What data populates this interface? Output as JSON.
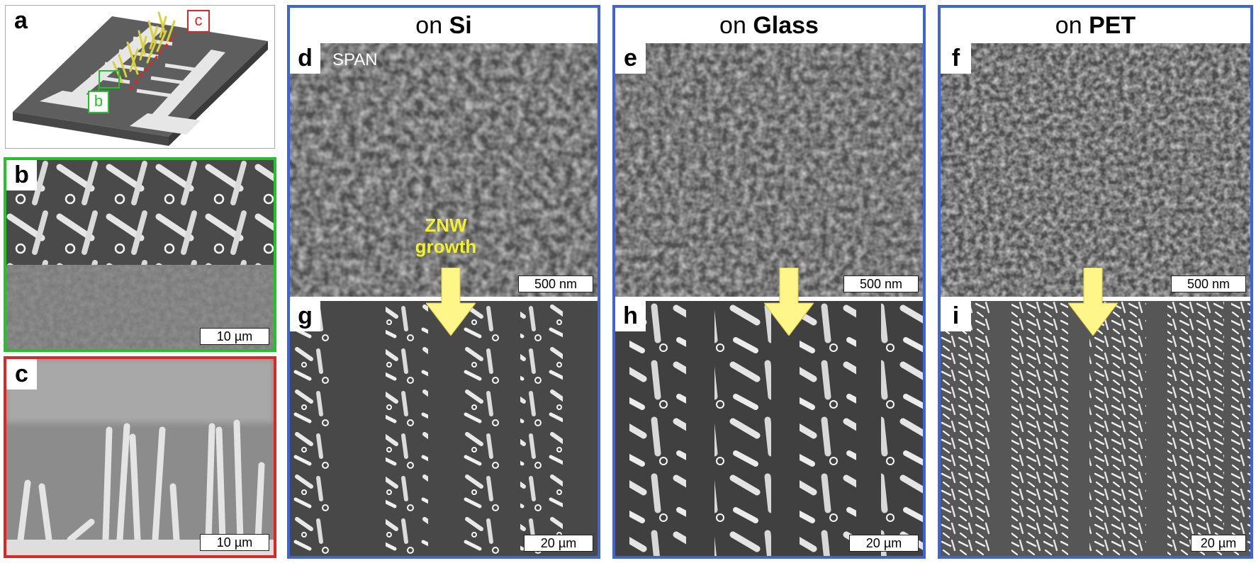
{
  "panel_a": {
    "letter": "a",
    "callout_b": "b",
    "callout_c": "c"
  },
  "panel_b": {
    "letter": "b",
    "scalebar": "10 µm"
  },
  "panel_c": {
    "letter": "c",
    "scalebar": "10 µm"
  },
  "columns": [
    {
      "header_prefix": "on ",
      "header_material": "Si",
      "top": {
        "letter": "d",
        "scalebar": "500 nm"
      },
      "bottom": {
        "letter": "g",
        "scalebar": "20 µm"
      }
    },
    {
      "header_prefix": "on ",
      "header_material": "Glass",
      "top": {
        "letter": "e",
        "scalebar": "500 nm"
      },
      "bottom": {
        "letter": "h",
        "scalebar": "20 µm"
      }
    },
    {
      "header_prefix": "on ",
      "header_material": "PET",
      "top": {
        "letter": "f",
        "scalebar": "500 nm"
      },
      "bottom": {
        "letter": "i",
        "scalebar": "20 µm"
      }
    }
  ],
  "annotations": {
    "span_label": "SPAN",
    "growth_line1": "ZNW",
    "growth_line2": "growth"
  },
  "colors": {
    "column_border": "#3f64d8",
    "panel_b_border": "#22c32a",
    "panel_c_border": "#e02525",
    "arrow": "#fff68a",
    "growth_text": "#f2f22a",
    "nanowire_model": "#d8d23a"
  }
}
